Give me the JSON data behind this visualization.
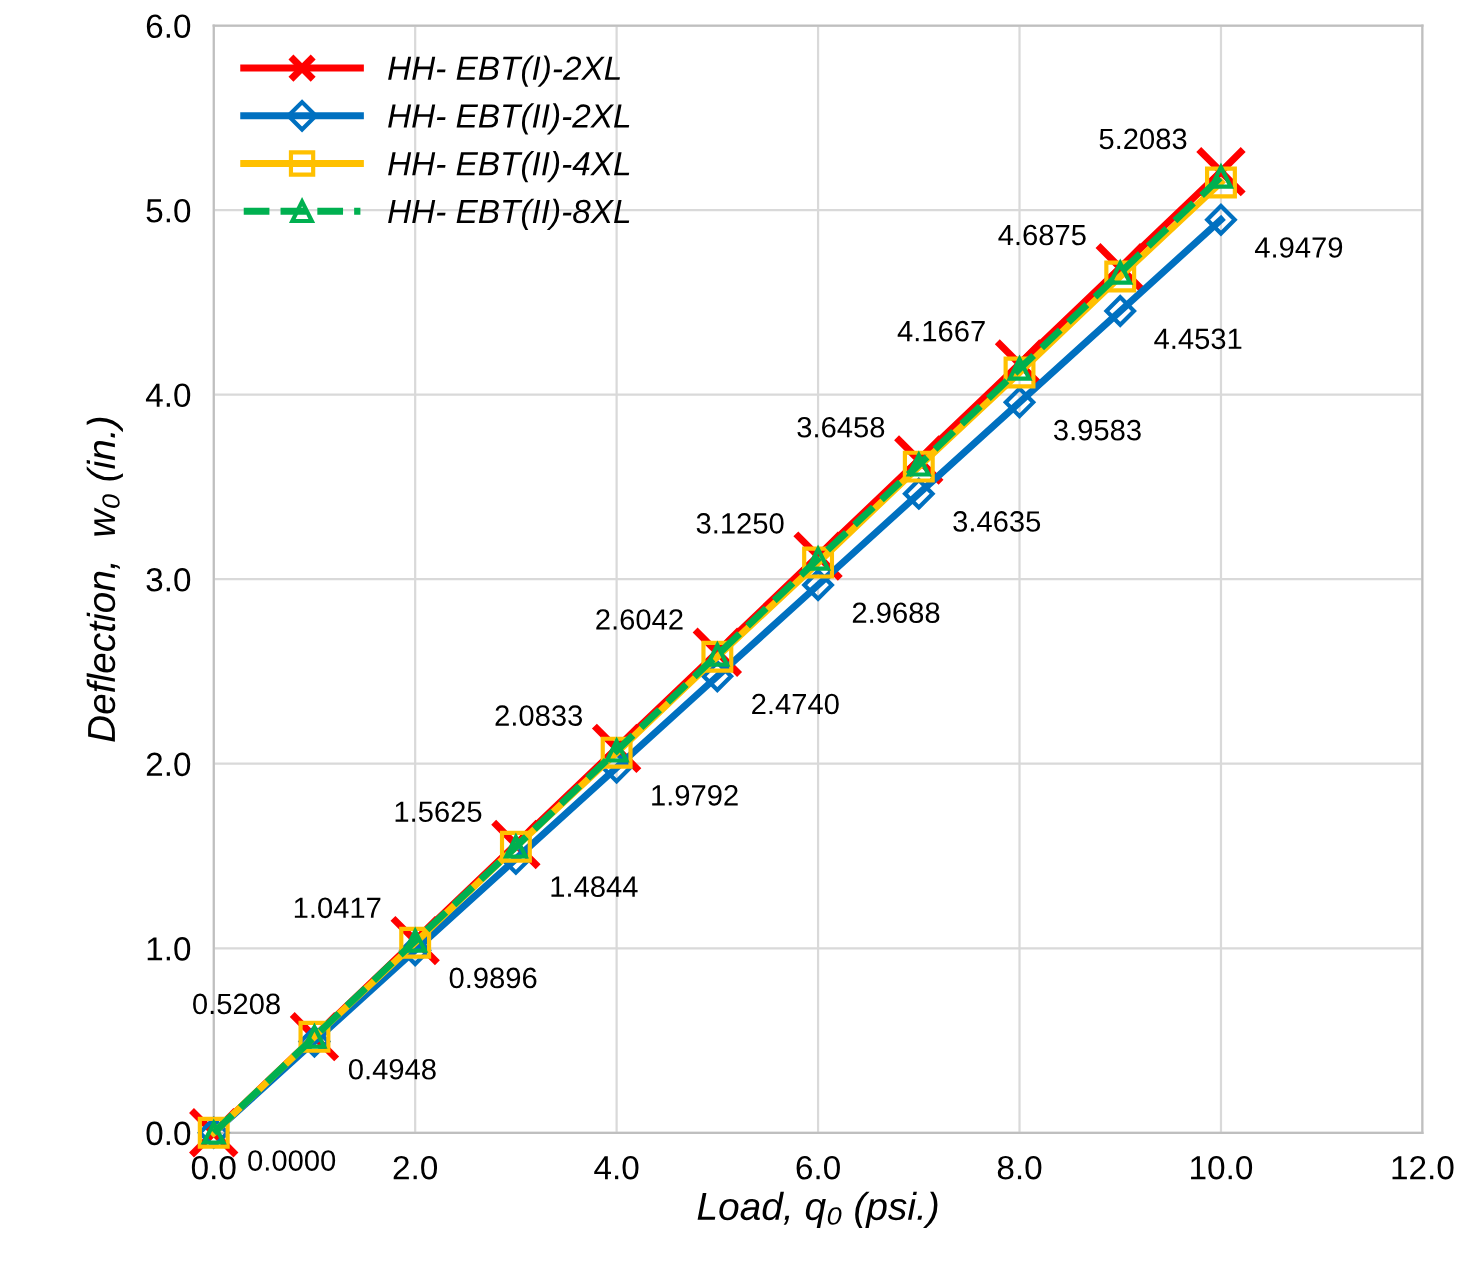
{
  "chart_data": {
    "type": "line",
    "xlabel": "Load, q₀ (psi.)",
    "ylabel": "Deflection,  w₀ (in.)",
    "x": [
      0,
      1,
      2,
      3,
      4,
      5,
      6,
      7,
      8,
      9,
      10
    ],
    "xlim": [
      0,
      12
    ],
    "xticks": [
      {
        "value": 0,
        "label": "0.0"
      },
      {
        "value": 2,
        "label": "2.0"
      },
      {
        "value": 4,
        "label": "4.0"
      },
      {
        "value": 6,
        "label": "6.0"
      },
      {
        "value": 8,
        "label": "8.0"
      },
      {
        "value": 10,
        "label": "10.0"
      },
      {
        "value": 12,
        "label": "12.0"
      }
    ],
    "ylim": [
      0,
      6
    ],
    "yticks": [
      {
        "value": 0,
        "label": "0.0"
      },
      {
        "value": 1,
        "label": "1.0"
      },
      {
        "value": 2,
        "label": "2.0"
      },
      {
        "value": 3,
        "label": "3.0"
      },
      {
        "value": 4,
        "label": "4.0"
      },
      {
        "value": 5,
        "label": "5.0"
      },
      {
        "value": 6,
        "label": "6.0"
      }
    ],
    "grid": true,
    "legend": "top left",
    "series": [
      {
        "name": "HH- EBT(I)-2XL",
        "color": "#ff0000",
        "marker": "cross",
        "line_style": "solid",
        "values": [
          0,
          0.5208,
          1.0417,
          1.5625,
          2.0833,
          2.6042,
          3.125,
          3.6458,
          4.1667,
          4.6875,
          5.2083
        ],
        "value_labels": [
          null,
          "0.5208",
          "1.0417",
          "1.5625",
          "2.0833",
          "2.6042",
          "3.1250",
          "3.6458",
          "4.1667",
          "4.6875",
          "5.2083"
        ]
      },
      {
        "name": "HH- EBT(II)-2XL",
        "color": "#0070c0",
        "marker": "diamond",
        "line_style": "solid",
        "values": [
          0,
          0.4948,
          0.9896,
          1.4844,
          1.9792,
          2.474,
          2.9688,
          3.4635,
          3.9583,
          4.4531,
          4.9479
        ],
        "value_labels": [
          "0.0000",
          "0.4948",
          "0.9896",
          "1.4844",
          "1.9792",
          "2.4740",
          "2.9688",
          "3.4635",
          "3.9583",
          "4.4531",
          "4.9479"
        ]
      },
      {
        "name": "HH- EBT(II)-4XL",
        "color": "#ffc000",
        "marker": "square",
        "line_style": "solid",
        "values": [
          0,
          0.52,
          1.03,
          1.55,
          2.06,
          2.58,
          3.09,
          3.61,
          4.12,
          4.64,
          5.15
        ]
      },
      {
        "name": "HH- EBT(II)-8XL",
        "color": "#00b050",
        "marker": "triangle",
        "line_style": "dashed",
        "values": [
          0,
          0.52,
          1.04,
          1.55,
          2.07,
          2.59,
          3.11,
          3.62,
          4.14,
          4.66,
          5.18
        ]
      }
    ]
  }
}
